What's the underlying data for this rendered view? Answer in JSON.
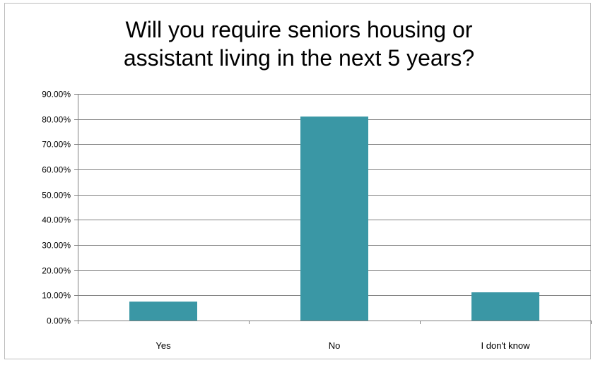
{
  "chart_data": {
    "type": "bar",
    "title": "Will you require seniors housing or\nassistant living in the next 5 years?",
    "categories": [
      "Yes",
      "No",
      "I don't know"
    ],
    "values": [
      7.5,
      81.0,
      11.2
    ],
    "ylim": [
      0,
      90
    ],
    "y_ticks": [
      0,
      10,
      20,
      30,
      40,
      50,
      60,
      70,
      80,
      90
    ],
    "y_tick_labels": [
      "0.00%",
      "10.00%",
      "20.00%",
      "30.00%",
      "40.00%",
      "50.00%",
      "60.00%",
      "70.00%",
      "80.00%",
      "90.00%"
    ],
    "xlabel": "",
    "ylabel": "",
    "grid": true,
    "legend": "none",
    "bar_color": "#3a97a5",
    "grid_color": "#7f7f7f"
  }
}
